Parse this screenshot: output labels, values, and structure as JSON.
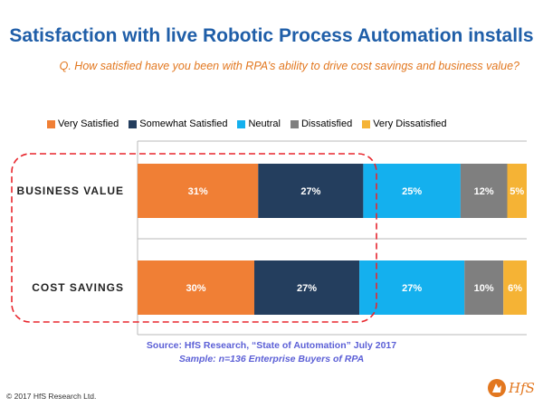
{
  "header": {
    "title": "Satisfaction with live Robotic Process Automation installs",
    "question": "Q. How satisfied have you been with RPA’s ability to drive cost savings and business value?"
  },
  "chart_data": {
    "type": "bar",
    "orientation": "horizontal",
    "stacked": true,
    "value_suffix": "%",
    "categories": [
      "BUSINESS VALUE",
      "COST SAVINGS"
    ],
    "series": [
      {
        "name": "Very Satisfied",
        "color": "#f07f35",
        "values": [
          31,
          30
        ]
      },
      {
        "name": "Somewhat Satisfied",
        "color": "#243e5e",
        "values": [
          27,
          27
        ]
      },
      {
        "name": "Neutral",
        "color": "#14b0ee",
        "values": [
          25,
          27
        ]
      },
      {
        "name": "Dissatisfied",
        "color": "#7f7f7f",
        "values": [
          12,
          10
        ]
      },
      {
        "name": "Very Dissatisfied",
        "color": "#f5b335",
        "values": [
          5,
          6
        ]
      }
    ],
    "xlim": [
      0,
      100
    ],
    "legend_position": "top",
    "highlight": "dashed red outline around the first two segments of both bars"
  },
  "footer": {
    "source": "Source: HfS Research, “State of Automation” July 2017",
    "sample": "Sample: n=136  Enterprise Buyers of RPA",
    "copyright": "© 2017 HfS Research Ltd.",
    "logo_text": "HfS"
  },
  "colors": {
    "title": "#1f5ea8",
    "accent": "#e2771f",
    "source_text": "#5b5fd6",
    "highlight": "#e8262d",
    "divider": "#b9b9b9"
  }
}
